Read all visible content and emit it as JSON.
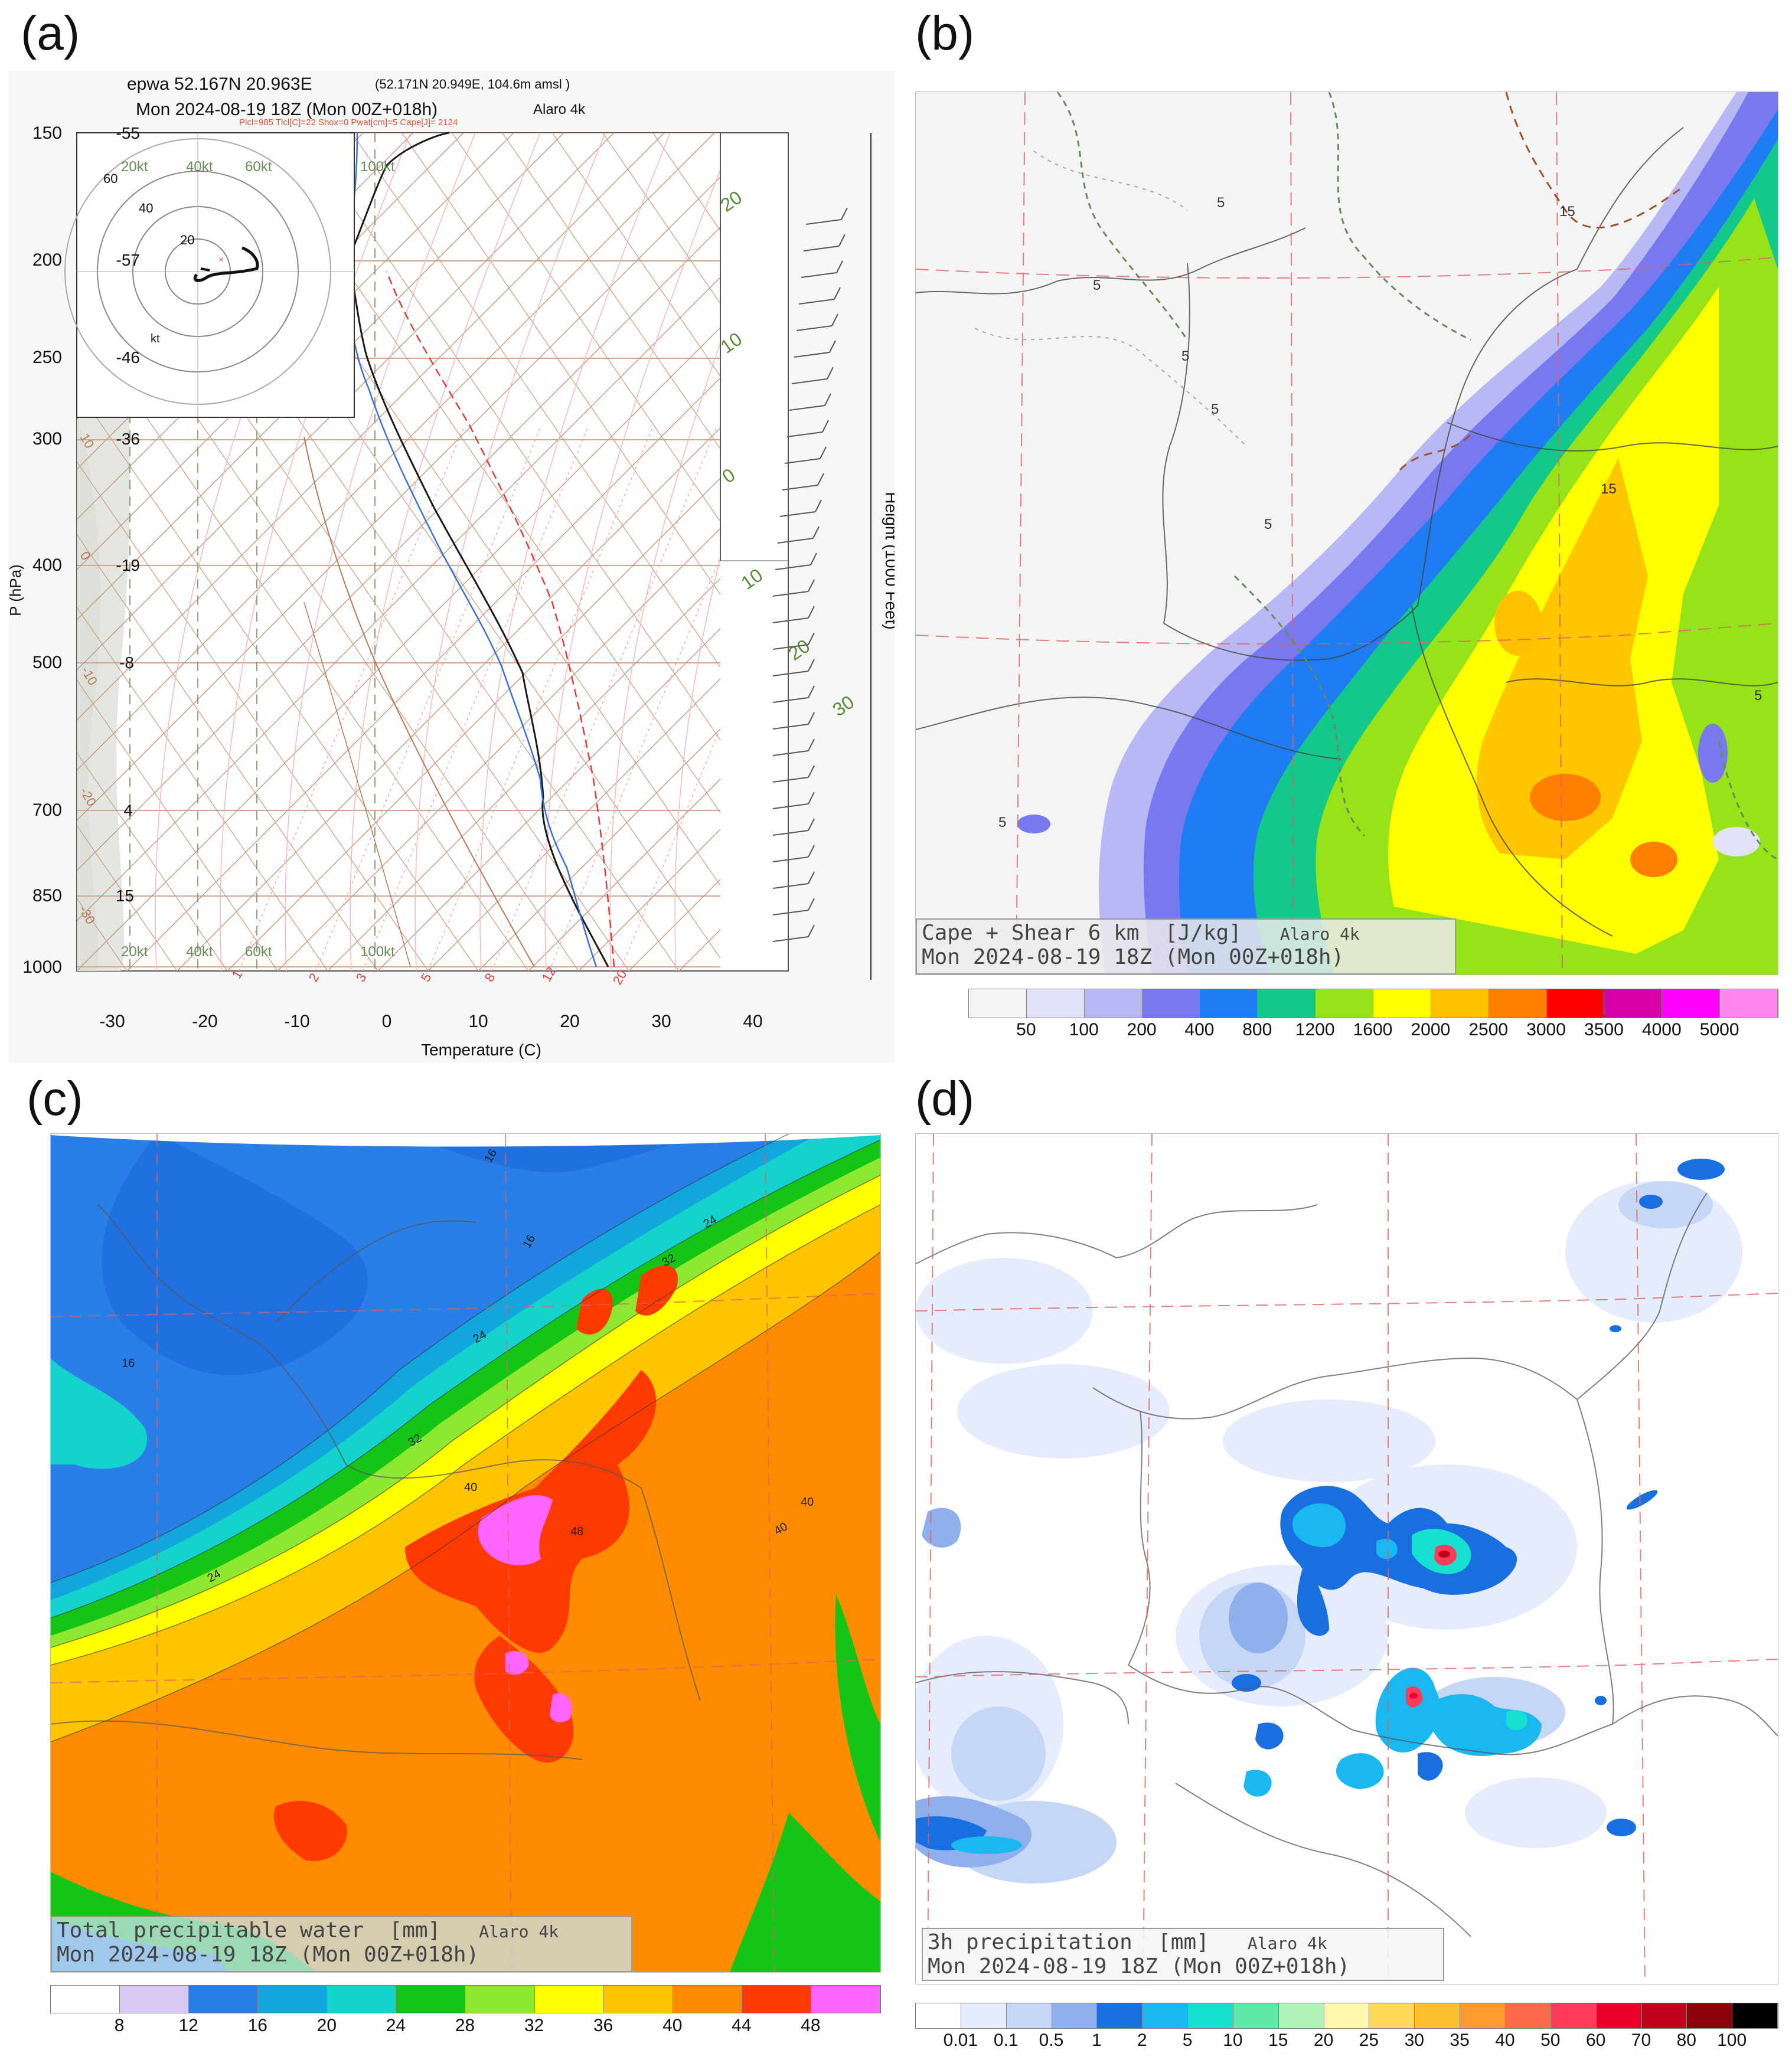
{
  "panel_labels": [
    "(a)",
    "(b)",
    "(c)",
    "(d)"
  ],
  "skewt": {
    "station_line": "epwa 52.167N 20.963E",
    "station_detail": "(52.171N 20.949E, 104.6m amsl )",
    "time_line": "Mon 2024-08-19 18Z (Mon 00Z+018h)",
    "model": "Alaro 4k",
    "indices": "Plcl=985 Tlcl[C]=22 Shox=0 Pwat[cm]=5 Cape[J]= 2124",
    "y_axis_label": "P (hPa)",
    "x_axis_label": "Temperature (C)",
    "right_axis_label": "Height (1000 Feet)",
    "pressure_ticks": [
      "150",
      "200",
      "250",
      "300",
      "400",
      "500",
      "700",
      "850",
      "1000"
    ],
    "height_ticks": [
      "-55",
      "-57",
      "-46",
      "-36",
      "-19",
      "-8",
      "4",
      "15"
    ],
    "temp_ticks": [
      "-30",
      "-20",
      "-10",
      "0",
      "10",
      "20",
      "30",
      "40"
    ],
    "wind_scale_top": [
      "20kt",
      "40kt",
      "60kt",
      "100kt"
    ],
    "wind_scale_bottom": [
      "20kt",
      "40kt",
      "60kt",
      "100kt"
    ],
    "hodograph_rings": [
      "20",
      "40",
      "60"
    ],
    "hodograph_unit": "kt",
    "mixing_ratio_labels": [
      "1",
      "2",
      "3",
      "5",
      "8",
      "12",
      "20"
    ],
    "dry_adiabat_labels": [
      "20",
      "10",
      "0",
      "10",
      "20",
      "30"
    ],
    "left_isotherm_labels": [
      "10",
      "0",
      "-10",
      "-20",
      "-30"
    ],
    "colors": {
      "temperature": "#1a1a1a",
      "dewpoint": "#3a6fd8",
      "parcel": "#e33b3b",
      "isobar": "#c98a6a"
    }
  },
  "cape_map": {
    "title": "Cape + Shear 6 km  [J/kg]",
    "model": "Alaro 4k",
    "time": "Mon 2024-08-19 18Z (Mon 00Z+018h)",
    "contour_labels": [
      "5",
      "5",
      "5",
      "5",
      "5",
      "5",
      "15",
      "15",
      "5"
    ],
    "colorbar": {
      "labels": [
        "50",
        "100",
        "200",
        "400",
        "800",
        "1200",
        "1600",
        "2000",
        "2500",
        "3000",
        "3500",
        "4000",
        "5000"
      ],
      "colors": [
        "#f4f4f4",
        "#e2e2fb",
        "#b8b8f5",
        "#7878ef",
        "#1f7cf2",
        "#12c98b",
        "#96e31a",
        "#ffff00",
        "#ffc000",
        "#ff8000",
        "#ff0000",
        "#d800a6",
        "#ff00ff",
        "#ff88ee"
      ]
    }
  },
  "pwat_map": {
    "title": "Total precipitable water  [mm]",
    "model": "Alaro 4k",
    "time": "Mon 2024-08-19 18Z (Mon 00Z+018h)",
    "contour_labels": [
      "16",
      "16",
      "16",
      "24",
      "32",
      "24",
      "32",
      "40",
      "40",
      "48",
      "24",
      "40"
    ],
    "colorbar": {
      "labels": [
        "8",
        "12",
        "16",
        "20",
        "24",
        "28",
        "32",
        "36",
        "40",
        "44",
        "48"
      ],
      "colors": [
        "#ffffff",
        "#d8c9f4",
        "#2a7ee8",
        "#11a6dd",
        "#16d2cc",
        "#16c416",
        "#8fe830",
        "#ffff00",
        "#ffc400",
        "#ff8c00",
        "#ff3a00",
        "#ff66ff"
      ]
    }
  },
  "precip_map": {
    "title": "3h precipitation  [mm]",
    "model": "Alaro 4k",
    "time": "Mon 2024-08-19 18Z (Mon 00Z+018h)",
    "colorbar": {
      "labels": [
        "0.01",
        "0.1",
        "0.5",
        "1",
        "2",
        "5",
        "10",
        "15",
        "20",
        "25",
        "30",
        "35",
        "40",
        "50",
        "60",
        "70",
        "80",
        "100"
      ],
      "colors": [
        "#ffffff",
        "#e6ecfb",
        "#c6d6f5",
        "#8fb0ec",
        "#1a6fe0",
        "#1ab8f0",
        "#18e0d0",
        "#5fe8a8",
        "#aef2b8",
        "#fff7b0",
        "#ffd85a",
        "#ffc030",
        "#ff9a30",
        "#ff6a4a",
        "#ff3a5a",
        "#e8002a",
        "#c00018",
        "#8a0008",
        "#000000"
      ]
    }
  }
}
